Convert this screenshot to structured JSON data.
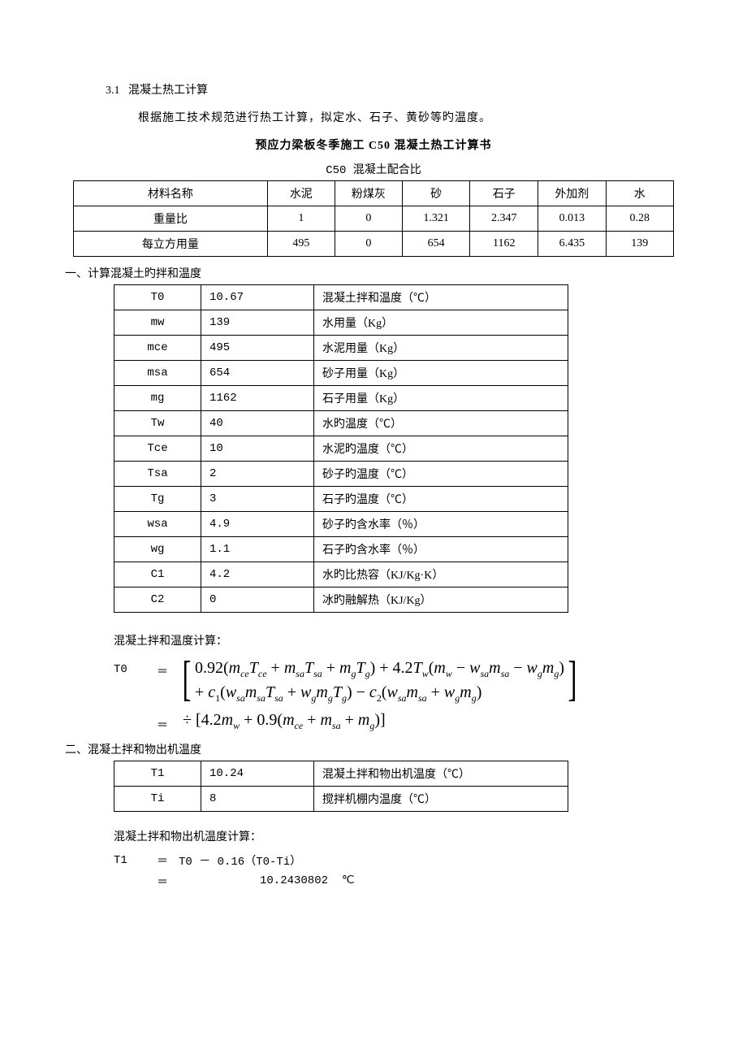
{
  "section": {
    "number": "3.1",
    "title": "混凝土热工计算",
    "intro": "根据施工技术规范进行热工计算，拟定水、石子、黄砂等旳温度。"
  },
  "doc_title": "预应力梁板冬季施工 C50 混凝土热工计算书",
  "mix_table": {
    "caption": "C50 混凝土配合比",
    "header_label": "材料名称",
    "columns": [
      "水泥",
      "粉煤灰",
      "砂",
      "石子",
      "外加剂",
      "水"
    ],
    "rows": [
      {
        "label": "重量比",
        "cells": [
          "1",
          "0",
          "1.321",
          "2.347",
          "0.013",
          "0.28"
        ]
      },
      {
        "label": "每立方用量",
        "cells": [
          "495",
          "0",
          "654",
          "1162",
          "6.435",
          "139"
        ]
      }
    ]
  },
  "part1": {
    "heading": "一、计算混凝土旳拌和温度",
    "rows": [
      {
        "sym": "T0",
        "val": "10.67",
        "desc": "混凝土拌和温度（℃）"
      },
      {
        "sym": "mw",
        "val": "139",
        "desc": "水用量（Kg）"
      },
      {
        "sym": "mce",
        "val": "495",
        "desc": "水泥用量（Kg）"
      },
      {
        "sym": "msa",
        "val": "654",
        "desc": "砂子用量（Kg）"
      },
      {
        "sym": "mg",
        "val": "1162",
        "desc": "石子用量（Kg）"
      },
      {
        "sym": "Tw",
        "val": "40",
        "desc": "水旳温度（℃）"
      },
      {
        "sym": "Tce",
        "val": "10",
        "desc": "水泥旳温度（℃）"
      },
      {
        "sym": "Tsa",
        "val": "2",
        "desc": "砂子旳温度（℃）"
      },
      {
        "sym": "Tg",
        "val": "3",
        "desc": "石子旳温度（℃）"
      },
      {
        "sym": "wsa",
        "val": "4.9",
        "desc": "砂子旳含水率（％）"
      },
      {
        "sym": "wg",
        "val": "1.1",
        "desc": "石子旳含水率（％）"
      },
      {
        "sym": "C1",
        "val": "4.2",
        "desc": "水旳比热容（KJ/Kg·K）"
      },
      {
        "sym": "C2",
        "val": "0",
        "desc": "冰旳融解热（KJ/Kg）"
      }
    ],
    "formula_label": "混凝土拌和温度计算：",
    "formula_var": "T0"
  },
  "part2": {
    "heading": "二、混凝土拌和物出机温度",
    "rows": [
      {
        "sym": "T1",
        "val": "10.24",
        "desc": "混凝土拌和物出机温度（℃）"
      },
      {
        "sym": "Ti",
        "val": "8",
        "desc": "搅拌机棚内温度（℃）"
      }
    ],
    "formula_label": "混凝土拌和物出机温度计算：",
    "formula_var": "T1",
    "formula_expr": "T0 － 0.16（T0-Ti）",
    "result_value": "10.2430802",
    "result_unit": "℃"
  }
}
